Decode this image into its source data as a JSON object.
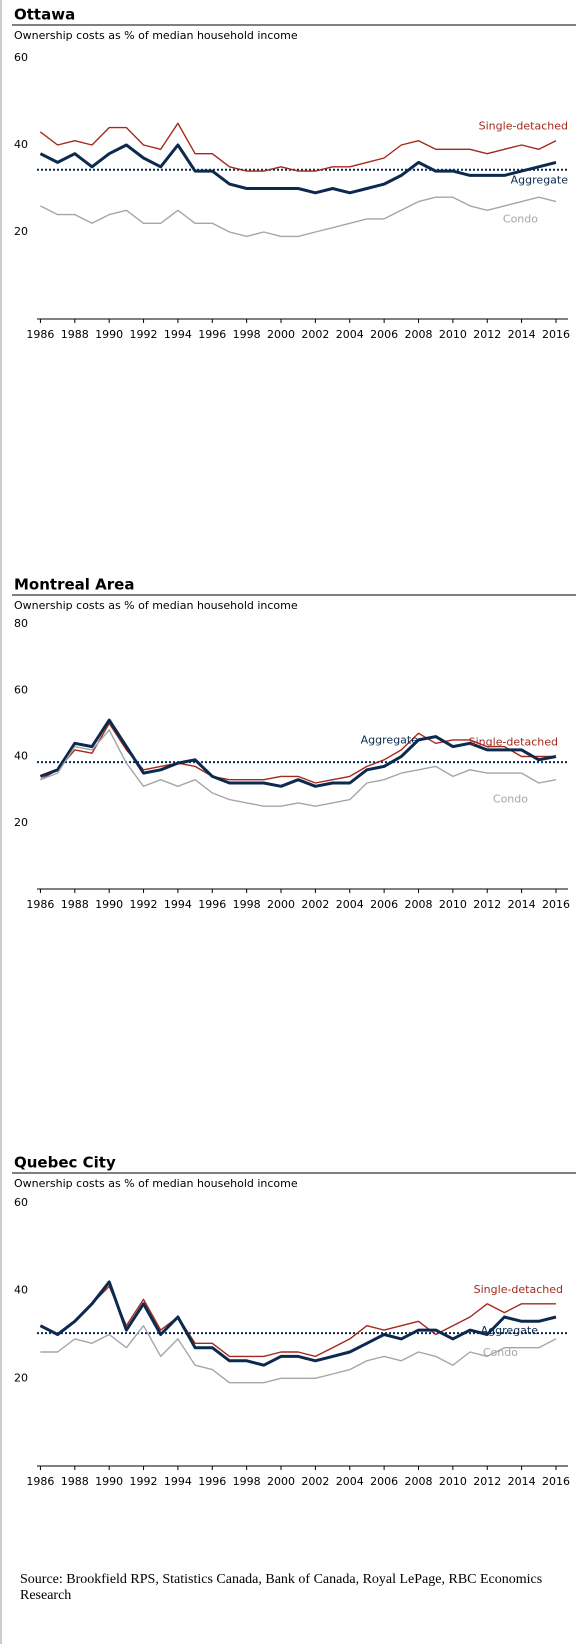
{
  "chart_data": [
    {
      "type": "line",
      "title": "Ottawa",
      "subtitle": "Ownership costs as % of median household income",
      "x": [
        1986,
        1987,
        1988,
        1989,
        1990,
        1991,
        1992,
        1993,
        1994,
        1995,
        1996,
        1997,
        1998,
        1999,
        2000,
        2001,
        2002,
        2003,
        2004,
        2005,
        2006,
        2007,
        2008,
        2009,
        2010,
        2011,
        2012,
        2013,
        2014,
        2015,
        2016
      ],
      "series": [
        {
          "name": "Single-detached",
          "color": "#a3291d",
          "values": [
            43,
            40,
            41,
            40,
            44,
            44,
            40,
            39,
            45,
            38,
            38,
            35,
            34,
            34,
            35,
            34,
            34,
            35,
            35,
            36,
            37,
            40,
            41,
            39,
            39,
            39,
            38,
            39,
            40,
            39,
            41
          ]
        },
        {
          "name": "Aggregate",
          "color": "#0c2a4f",
          "values": [
            38,
            36,
            38,
            35,
            38,
            40,
            37,
            35,
            40,
            34,
            34,
            31,
            30,
            30,
            30,
            30,
            29,
            30,
            29,
            30,
            31,
            33,
            36,
            34,
            34,
            33,
            33,
            33,
            34,
            35,
            36
          ]
        },
        {
          "name": "Condo",
          "color": "#a6a6a6",
          "values": [
            26,
            24,
            24,
            22,
            24,
            25,
            22,
            22,
            25,
            22,
            22,
            20,
            19,
            20,
            19,
            19,
            20,
            21,
            22,
            23,
            23,
            25,
            27,
            28,
            28,
            26,
            25,
            26,
            27,
            28,
            27
          ]
        }
      ],
      "reference_line": 34.3,
      "xlim": [
        1985.8,
        2016.7
      ],
      "xticks": [
        1986,
        1988,
        1990,
        1992,
        1994,
        1996,
        1998,
        2000,
        2002,
        2004,
        2006,
        2008,
        2010,
        2012,
        2014,
        2016
      ],
      "ylim": [
        0,
        60
      ],
      "yticks": [
        20,
        40,
        60
      ]
    },
    {
      "type": "line",
      "title": "Montreal Area",
      "subtitle": "Ownership costs as % of median household income",
      "x": [
        1986,
        1987,
        1988,
        1989,
        1990,
        1991,
        1992,
        1993,
        1994,
        1995,
        1996,
        1997,
        1998,
        1999,
        2000,
        2001,
        2002,
        2003,
        2004,
        2005,
        2006,
        2007,
        2008,
        2009,
        2010,
        2011,
        2012,
        2013,
        2014,
        2015,
        2016
      ],
      "series": [
        {
          "name": "Single-detached",
          "color": "#a3291d",
          "values": [
            33,
            36,
            42,
            41,
            50,
            42,
            36,
            37,
            38,
            37,
            34,
            33,
            33,
            33,
            34,
            34,
            32,
            33,
            34,
            37,
            39,
            42,
            47,
            44,
            45,
            45,
            43,
            43,
            40,
            40,
            40
          ]
        },
        {
          "name": "Aggregate",
          "color": "#0c2a4f",
          "values": [
            34,
            36,
            44,
            43,
            51,
            43,
            35,
            36,
            38,
            39,
            34,
            32,
            32,
            32,
            31,
            33,
            31,
            32,
            32,
            36,
            37,
            40,
            45,
            46,
            43,
            44,
            42,
            42,
            42,
            39,
            40
          ]
        },
        {
          "name": "Condo",
          "color": "#a6a6a6",
          "values": [
            33,
            35,
            43,
            42,
            48,
            38,
            31,
            33,
            31,
            33,
            29,
            27,
            26,
            25,
            25,
            26,
            25,
            26,
            27,
            32,
            33,
            35,
            36,
            37,
            34,
            36,
            35,
            35,
            35,
            32,
            33
          ]
        }
      ],
      "reference_line": 38.3,
      "xlim": [
        1985.8,
        2016.7
      ],
      "xticks": [
        1986,
        1988,
        1990,
        1992,
        1994,
        1996,
        1998,
        2000,
        2002,
        2004,
        2006,
        2008,
        2010,
        2012,
        2014,
        2016
      ],
      "ylim": [
        0,
        80
      ],
      "yticks": [
        20,
        40,
        60,
        80
      ]
    },
    {
      "type": "line",
      "title": "Quebec City",
      "subtitle": "Ownership costs as % of median household income",
      "x": [
        1986,
        1987,
        1988,
        1989,
        1990,
        1991,
        1992,
        1993,
        1994,
        1995,
        1996,
        1997,
        1998,
        1999,
        2000,
        2001,
        2002,
        2003,
        2004,
        2005,
        2006,
        2007,
        2008,
        2009,
        2010,
        2011,
        2012,
        2013,
        2014,
        2015,
        2016
      ],
      "series": [
        {
          "name": "Single-detached",
          "color": "#a3291d",
          "values": [
            32,
            30,
            33,
            37,
            41,
            32,
            38,
            31,
            34,
            28,
            28,
            25,
            25,
            25,
            26,
            26,
            25,
            27,
            29,
            32,
            31,
            32,
            33,
            30,
            32,
            34,
            37,
            35,
            37,
            37,
            37
          ]
        },
        {
          "name": "Aggregate",
          "color": "#0c2a4f",
          "values": [
            32,
            30,
            33,
            37,
            42,
            31,
            37,
            30,
            34,
            27,
            27,
            24,
            24,
            23,
            25,
            25,
            24,
            25,
            26,
            28,
            30,
            29,
            31,
            31,
            29,
            31,
            30,
            34,
            33,
            33,
            34
          ]
        },
        {
          "name": "Condo",
          "color": "#a6a6a6",
          "values": [
            26,
            26,
            29,
            28,
            30,
            27,
            32,
            25,
            29,
            23,
            22,
            19,
            19,
            19,
            20,
            20,
            20,
            21,
            22,
            24,
            25,
            24,
            26,
            25,
            23,
            26,
            25,
            27,
            27,
            27,
            29
          ]
        }
      ],
      "reference_line": 30.3,
      "xlim": [
        1985.8,
        2016.7
      ],
      "xticks": [
        1986,
        1988,
        1990,
        1992,
        1994,
        1996,
        1998,
        2000,
        2002,
        2004,
        2006,
        2008,
        2010,
        2012,
        2014,
        2016
      ],
      "ylim": [
        0,
        60
      ],
      "yticks": [
        20,
        40,
        60
      ]
    }
  ],
  "source": "Source: Brookfield RPS, Statistics Canada, Bank of Canada, Royal LePage, RBC Economics Research"
}
